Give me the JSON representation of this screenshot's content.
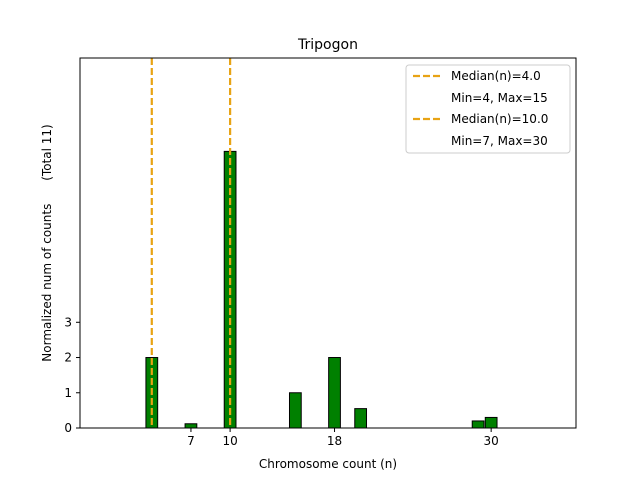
{
  "chart_data": {
    "type": "bar",
    "title": "Tripogon",
    "xlabel": "Chromosome count (n)",
    "ylabel": "Normalized num of counts      (Total 11)",
    "xlim": [
      -1.5,
      36.5
    ],
    "ylim": [
      0,
      10.5
    ],
    "xticks": [
      7,
      10,
      18,
      30
    ],
    "yticks": [
      0,
      1,
      2,
      3
    ],
    "bar_width": 0.9,
    "bar_color": "#008000",
    "bar_edge_color": "#000000",
    "bars": [
      {
        "x": 4,
        "value": 2.0
      },
      {
        "x": 7,
        "value": 0.12
      },
      {
        "x": 10,
        "value": 7.85
      },
      {
        "x": 15,
        "value": 1.0
      },
      {
        "x": 18,
        "value": 2.0
      },
      {
        "x": 20,
        "value": 0.55
      },
      {
        "x": 29,
        "value": 0.2
      },
      {
        "x": 30,
        "value": 0.3
      }
    ],
    "median_lines": [
      {
        "x": 4.0,
        "label": "Median(n)=4.0",
        "range_label": "Min=4, Max=15",
        "color": "#e8a314"
      },
      {
        "x": 10.0,
        "label": "Median(n)=10.0",
        "range_label": "Min=7, Max=30",
        "color": "#e8a314"
      }
    ],
    "legend_position": "top-right"
  }
}
